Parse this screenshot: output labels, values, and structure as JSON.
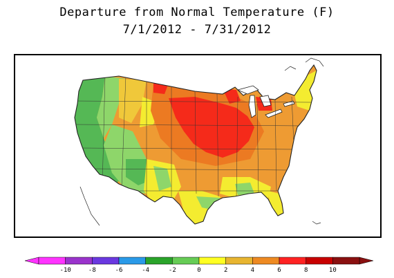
{
  "title": {
    "line1": "Departure from Normal Temperature (F)",
    "line2": "7/1/2012 - 7/31/2012"
  },
  "legend": {
    "ticks": [
      "-10",
      "-8",
      "-6",
      "-4",
      "-2",
      "0",
      "2",
      "4",
      "6",
      "8",
      "10"
    ],
    "colors": [
      "#ff33ff",
      "#9a33cc",
      "#6a38e0",
      "#2a9ae8",
      "#2aa42a",
      "#66cc55",
      "#ffff22",
      "#e8b530",
      "#ee8a22",
      "#ff2222",
      "#c80000",
      "#8a1010"
    ]
  },
  "map": {
    "palette": {
      "cool_green": "#55b855",
      "light_green": "#8ed66a",
      "yellow": "#f4ec30",
      "yellow_orange": "#f0c83a",
      "orange": "#ee9b33",
      "deep_orange": "#ec7a22",
      "red": "#f52a1a",
      "ocean": "#ffffff",
      "lakes": "#ffffff",
      "borders": "#222222"
    }
  }
}
